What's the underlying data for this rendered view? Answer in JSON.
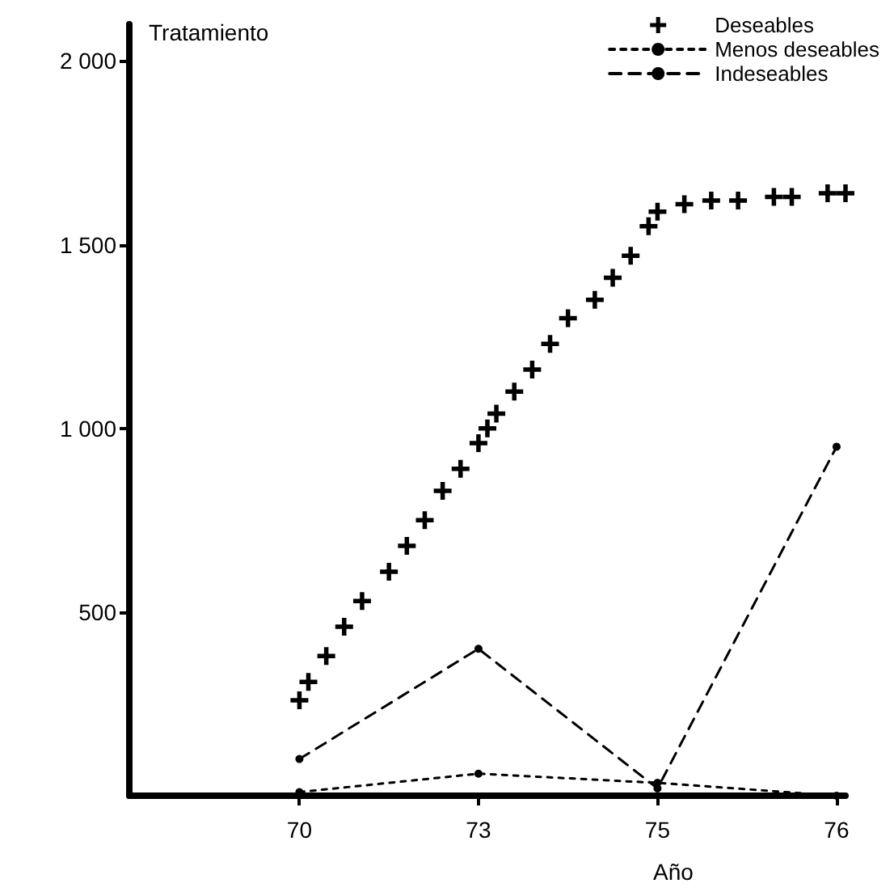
{
  "chart_data": {
    "type": "line",
    "ylabel": "Tratamiento",
    "xlabel": "Año",
    "categories": [
      null,
      null,
      null,
      null,
      null,
      null,
      null,
      null,
      null,
      null,
      null,
      null,
      null,
      null,
      null,
      null,
      null,
      null,
      null,
      "70",
      null,
      null,
      null,
      null,
      null,
      null,
      null,
      null,
      null,
      null,
      null,
      null,
      null,
      null,
      null,
      null,
      null,
      null,
      null,
      "73",
      null,
      null,
      null,
      null,
      null,
      null,
      null,
      null,
      null,
      null,
      null,
      null,
      null,
      null,
      null,
      null,
      null,
      null,
      null,
      "75",
      null,
      null,
      null,
      null,
      null,
      null,
      null,
      null,
      null,
      null,
      null,
      null,
      null,
      null,
      null,
      null,
      null,
      null,
      null,
      "76",
      null
    ],
    "series": [
      {
        "name": "Deseables",
        "type": "scatter",
        "marker": "cross",
        "color": "#000000",
        "values": [
          null,
          null,
          null,
          null,
          null,
          null,
          null,
          null,
          null,
          null,
          null,
          null,
          null,
          null,
          null,
          null,
          null,
          null,
          null,
          260,
          310,
          null,
          380,
          null,
          460,
          null,
          530,
          null,
          null,
          610,
          null,
          680,
          null,
          750,
          null,
          830,
          null,
          890,
          null,
          960,
          1000,
          1040,
          null,
          1100,
          null,
          1160,
          null,
          1230,
          null,
          1300,
          null,
          null,
          1350,
          null,
          1410,
          null,
          1470,
          null,
          1550,
          1590,
          null,
          null,
          1610,
          null,
          null,
          1620,
          null,
          null,
          1620,
          null,
          null,
          null,
          1630,
          null,
          1630,
          null,
          null,
          null,
          1640,
          null,
          1640
        ]
      },
      {
        "name": "Menos deseables",
        "type": "line",
        "line_style": "dotted",
        "marker": "circle",
        "color": "#000000",
        "values": [
          null,
          null,
          null,
          null,
          null,
          null,
          null,
          null,
          null,
          null,
          null,
          null,
          null,
          null,
          null,
          null,
          null,
          null,
          null,
          10,
          null,
          null,
          null,
          null,
          null,
          null,
          null,
          null,
          null,
          null,
          null,
          null,
          null,
          null,
          null,
          null,
          null,
          null,
          null,
          60,
          null,
          null,
          null,
          null,
          null,
          null,
          null,
          null,
          null,
          null,
          null,
          null,
          null,
          null,
          null,
          null,
          null,
          null,
          null,
          35,
          null,
          null,
          null,
          null,
          null,
          null,
          null,
          null,
          null,
          null,
          null,
          null,
          null,
          null,
          null,
          null,
          null,
          null,
          null,
          0,
          null
        ]
      },
      {
        "name": "Indeseables",
        "type": "line",
        "line_style": "dashed",
        "marker": "circle",
        "color": "#000000",
        "values": [
          null,
          null,
          null,
          null,
          null,
          null,
          null,
          null,
          null,
          null,
          null,
          null,
          null,
          null,
          null,
          null,
          null,
          null,
          null,
          100,
          null,
          null,
          null,
          null,
          null,
          null,
          null,
          null,
          null,
          null,
          null,
          null,
          null,
          null,
          null,
          null,
          null,
          null,
          null,
          400,
          null,
          null,
          null,
          null,
          null,
          null,
          null,
          null,
          null,
          null,
          null,
          null,
          null,
          null,
          null,
          null,
          null,
          null,
          null,
          20,
          null,
          null,
          null,
          null,
          null,
          null,
          null,
          null,
          null,
          null,
          null,
          null,
          null,
          null,
          null,
          null,
          null,
          null,
          null,
          950,
          null
        ]
      }
    ],
    "ylim": [
      0,
      2100
    ],
    "yticks": [
      {
        "value": 500,
        "label": "500"
      },
      {
        "value": 1000,
        "label": "1 000"
      },
      {
        "value": 1500,
        "label": "1 500"
      },
      {
        "value": 2000,
        "label": "2 000"
      }
    ],
    "legend": "top right",
    "grid": false
  }
}
